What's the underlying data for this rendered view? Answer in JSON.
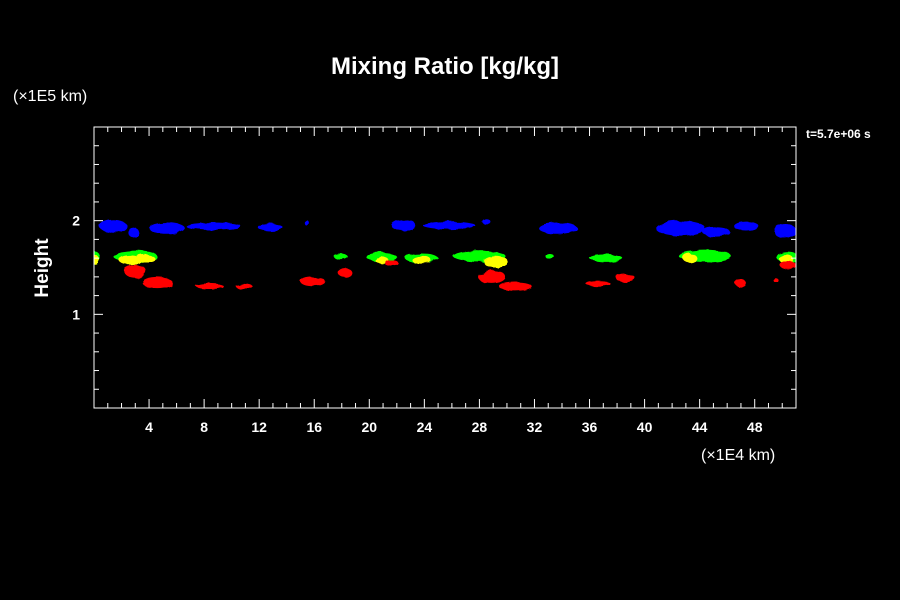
{
  "chart_data": {
    "type": "heatmap",
    "title": "Mixing Ratio [kg/kg]",
    "xlabel": "",
    "ylabel": "Height",
    "x_unit": "(×1E4 km)",
    "y_unit": "(×1E5 km)",
    "time_label": "t=5.7e+06 s",
    "xlim": [
      0,
      51
    ],
    "ylim": [
      0,
      3
    ],
    "x_ticks": [
      4,
      8,
      12,
      16,
      20,
      24,
      28,
      32,
      36,
      40,
      44,
      48
    ],
    "y_ticks": [
      1,
      2
    ],
    "grid": false,
    "colors": {
      "background": "#000000",
      "axes": "#ffffff",
      "blue": "#0000ff",
      "green": "#00ff00",
      "yellow": "#ffff00",
      "red": "#ff0000"
    },
    "regions": [
      {
        "color": "blue",
        "blobs": [
          [
            1.4,
            1.94,
            1.0,
            0.07
          ],
          [
            2.9,
            1.87,
            0.4,
            0.05
          ],
          [
            5.3,
            1.92,
            1.3,
            0.06
          ],
          [
            8.7,
            1.94,
            2.0,
            0.04
          ],
          [
            12.8,
            1.93,
            0.9,
            0.04
          ],
          [
            15.5,
            1.97,
            0.15,
            0.03
          ],
          [
            22.5,
            1.95,
            0.9,
            0.06
          ],
          [
            25.8,
            1.95,
            1.9,
            0.04
          ],
          [
            28.5,
            1.99,
            0.3,
            0.03
          ],
          [
            33.7,
            1.92,
            1.4,
            0.06
          ],
          [
            42.6,
            1.92,
            1.8,
            0.08
          ],
          [
            45.2,
            1.88,
            1.0,
            0.05
          ],
          [
            47.4,
            1.94,
            0.9,
            0.05
          ],
          [
            50.2,
            1.89,
            0.8,
            0.08
          ]
        ]
      },
      {
        "color": "green",
        "blobs": [
          [
            0.1,
            1.6,
            0.35,
            0.07
          ],
          [
            3.0,
            1.62,
            1.6,
            0.06
          ],
          [
            17.9,
            1.62,
            0.5,
            0.03
          ],
          [
            20.9,
            1.61,
            1.1,
            0.05
          ],
          [
            23.8,
            1.6,
            1.2,
            0.05
          ],
          [
            28.0,
            1.62,
            1.9,
            0.06
          ],
          [
            33.1,
            1.62,
            0.3,
            0.03
          ],
          [
            37.2,
            1.6,
            1.2,
            0.04
          ],
          [
            44.4,
            1.62,
            1.9,
            0.06
          ],
          [
            50.4,
            1.61,
            0.8,
            0.06
          ]
        ]
      },
      {
        "color": "yellow",
        "blobs": [
          [
            0.1,
            1.58,
            0.3,
            0.05
          ],
          [
            2.6,
            1.58,
            0.8,
            0.05
          ],
          [
            3.7,
            1.6,
            0.7,
            0.04
          ],
          [
            20.9,
            1.58,
            0.5,
            0.03
          ],
          [
            23.8,
            1.58,
            0.7,
            0.04
          ],
          [
            29.2,
            1.56,
            0.9,
            0.06
          ],
          [
            43.3,
            1.6,
            0.5,
            0.05
          ],
          [
            50.3,
            1.59,
            0.5,
            0.05
          ]
        ]
      },
      {
        "color": "red",
        "blobs": [
          [
            3.0,
            1.46,
            0.8,
            0.07
          ],
          [
            4.6,
            1.34,
            1.1,
            0.06
          ],
          [
            8.4,
            1.3,
            1.0,
            0.03
          ],
          [
            10.9,
            1.3,
            0.6,
            0.03
          ],
          [
            15.9,
            1.35,
            0.9,
            0.05
          ],
          [
            18.2,
            1.45,
            0.5,
            0.05
          ],
          [
            21.6,
            1.55,
            0.5,
            0.03
          ],
          [
            28.9,
            1.4,
            1.0,
            0.07
          ],
          [
            30.6,
            1.3,
            1.2,
            0.05
          ],
          [
            36.6,
            1.33,
            0.9,
            0.03
          ],
          [
            38.6,
            1.39,
            0.7,
            0.04
          ],
          [
            47.0,
            1.33,
            0.4,
            0.04
          ],
          [
            49.5,
            1.37,
            0.2,
            0.02
          ],
          [
            50.4,
            1.53,
            0.6,
            0.04
          ]
        ]
      }
    ]
  }
}
